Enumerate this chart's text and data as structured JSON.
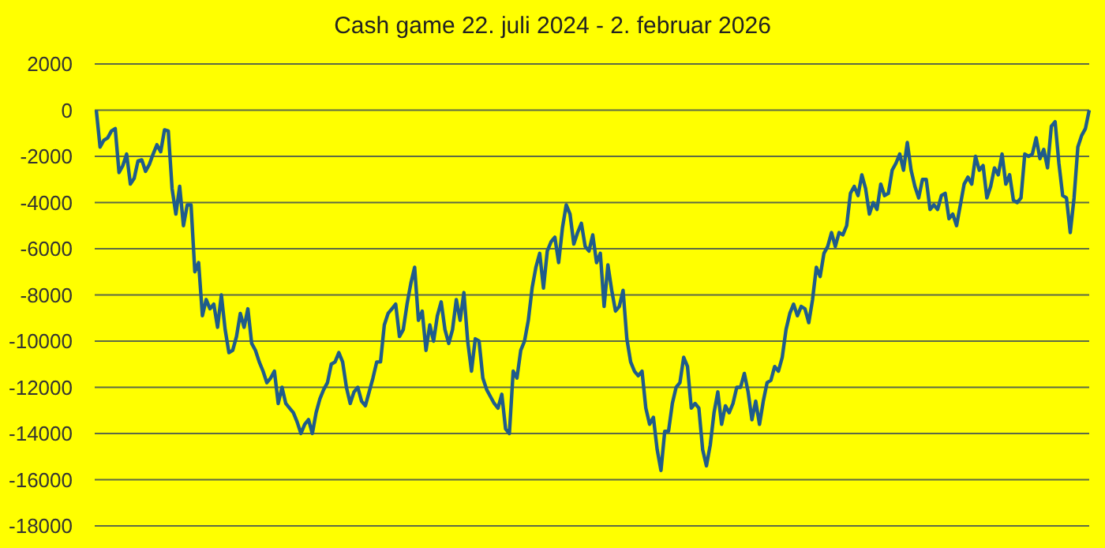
{
  "chart_data": {
    "type": "line",
    "title": "Cash game 22. juli 2024 - 2. februar 2026",
    "ylim": [
      -18000,
      2000
    ],
    "yticks": [
      -18000,
      -16000,
      -14000,
      -12000,
      -10000,
      -8000,
      -6000,
      -4000,
      -2000,
      0,
      2000
    ],
    "grid": "y",
    "categories": [
      null,
      null,
      null,
      null,
      null,
      null,
      null,
      null,
      null,
      null,
      null,
      null,
      null,
      null,
      null,
      null,
      null,
      null,
      null,
      null,
      null,
      null,
      null,
      null,
      null,
      null,
      null,
      null,
      null,
      null,
      null,
      null,
      null,
      null,
      null,
      null,
      null,
      null,
      null,
      null,
      null,
      null,
      null,
      null,
      null,
      null,
      null,
      null,
      null,
      null,
      null,
      null,
      null,
      null,
      null,
      null,
      null,
      null,
      null,
      null,
      null,
      null,
      null,
      null,
      null,
      null,
      null,
      null,
      null,
      null,
      null,
      null,
      null,
      null,
      null,
      null,
      null,
      null,
      null,
      null,
      null,
      null,
      null,
      null,
      null,
      null,
      null,
      null,
      null,
      null,
      null,
      null,
      null,
      null,
      null,
      null,
      null,
      null,
      null,
      null,
      null,
      null,
      null,
      null,
      null,
      null,
      null,
      null,
      null,
      null,
      null,
      null,
      null,
      null,
      null,
      null,
      null,
      null,
      null,
      null,
      null,
      null,
      null,
      null,
      null,
      null,
      null,
      null,
      null,
      null,
      null,
      null,
      null,
      null,
      null,
      null,
      null,
      null,
      null,
      null,
      null,
      null,
      null,
      null,
      null,
      null,
      null,
      null,
      null,
      null,
      null,
      null,
      null,
      null,
      null,
      null,
      null,
      null,
      null,
      null,
      null,
      null,
      null,
      null,
      null,
      null,
      null,
      null,
      null,
      null,
      null,
      null,
      null,
      null,
      null,
      null,
      null,
      null,
      null,
      null,
      null,
      null,
      null,
      null,
      null,
      null,
      null,
      null,
      null,
      null,
      null,
      null,
      null,
      null,
      null,
      null,
      null,
      null,
      null,
      null,
      null,
      null,
      null,
      null,
      null,
      null,
      null,
      null,
      null,
      null,
      null,
      null,
      null,
      null,
      null,
      null,
      null,
      null,
      null,
      null,
      null,
      null,
      null,
      null,
      null,
      null,
      null,
      null,
      null,
      null,
      null,
      null,
      null,
      null,
      null,
      null,
      null,
      null,
      null,
      null,
      null,
      null,
      null,
      null,
      null,
      null,
      null,
      null,
      null,
      null,
      null,
      null,
      null,
      null,
      null,
      null,
      null,
      null,
      null,
      null,
      null,
      null,
      null
    ],
    "series": [
      {
        "color": "#1f5c8b",
        "values": [
          0,
          -1600,
          -1300,
          -1200,
          -900,
          -800,
          -2700,
          -2400,
          -1900,
          -3200,
          -2950,
          -2200,
          -2150,
          -2650,
          -2350,
          -1900,
          -1500,
          -1800,
          -850,
          -900,
          -3400,
          -4500,
          -3300,
          -5000,
          -4100,
          -4100,
          -7000,
          -6600,
          -8900,
          -8200,
          -8600,
          -8400,
          -9400,
          -8000,
          -9500,
          -10500,
          -10400,
          -9800,
          -8800,
          -9400,
          -8600,
          -10100,
          -10400,
          -10900,
          -11300,
          -11800,
          -11600,
          -11300,
          -12700,
          -12000,
          -12700,
          -12900,
          -13100,
          -13500,
          -14000,
          -13600,
          -13400,
          -14000,
          -13100,
          -12500,
          -12100,
          -11800,
          -11000,
          -10900,
          -10500,
          -10900,
          -12000,
          -12700,
          -12200,
          -12000,
          -12600,
          -12800,
          -12200,
          -11600,
          -10900,
          -10900,
          -9300,
          -8800,
          -8600,
          -8400,
          -9800,
          -9500,
          -8400,
          -7500,
          -6800,
          -9100,
          -8700,
          -10400,
          -9300,
          -10000,
          -8900,
          -8300,
          -9500,
          -10100,
          -9500,
          -8200,
          -9100,
          -7900,
          -10000,
          -11300,
          -9900,
          -10000,
          -11600,
          -12100,
          -12400,
          -12700,
          -12900,
          -12300,
          -13800,
          -14000,
          -11300,
          -11600,
          -10400,
          -10000,
          -9100,
          -7700,
          -6800,
          -6200,
          -7700,
          -6100,
          -5700,
          -5500,
          -6600,
          -5100,
          -4100,
          -4500,
          -5800,
          -5300,
          -4900,
          -5900,
          -6100,
          -5400,
          -6600,
          -6200,
          -8500,
          -6700,
          -7800,
          -8700,
          -8500,
          -7800,
          -9900,
          -10900,
          -11300,
          -11500,
          -11300,
          -12900,
          -13600,
          -13300,
          -14700,
          -15600,
          -13900,
          -13900,
          -12700,
          -12000,
          -11800,
          -10700,
          -11100,
          -12900,
          -12700,
          -12900,
          -14700,
          -15400,
          -14500,
          -13100,
          -12200,
          -13600,
          -12800,
          -13100,
          -12700,
          -12000,
          -12000,
          -11400,
          -12200,
          -13400,
          -12600,
          -13600,
          -12600,
          -11800,
          -11700,
          -11100,
          -11300,
          -10700,
          -9500,
          -8800,
          -8400,
          -8900,
          -8500,
          -8600,
          -9200,
          -8200,
          -6800,
          -7200,
          -6200,
          -5900,
          -5300,
          -5900,
          -5300,
          -5400,
          -5000,
          -3600,
          -3300,
          -3700,
          -2800,
          -3400,
          -4500,
          -4000,
          -4300,
          -3200,
          -3700,
          -3600,
          -2600,
          -2300,
          -1900,
          -2600,
          -1400,
          -2600,
          -3300,
          -3800,
          -3000,
          -3000,
          -4300,
          -4100,
          -4300,
          -3700,
          -3600,
          -4700,
          -4500,
          -5000,
          -4100,
          -3200,
          -2900,
          -3200,
          -2000,
          -2600,
          -2400,
          -3800,
          -3300,
          -2500,
          -2800,
          -1900,
          -3200,
          -2800,
          -3900,
          -4000,
          -3800,
          -1900,
          -2000,
          -1900,
          -1200,
          -2100,
          -1700,
          -2500,
          -700,
          -500,
          -2300,
          -3700,
          -3800,
          -5300,
          -3800,
          -1600,
          -1100,
          -800,
          0
        ]
      }
    ]
  }
}
